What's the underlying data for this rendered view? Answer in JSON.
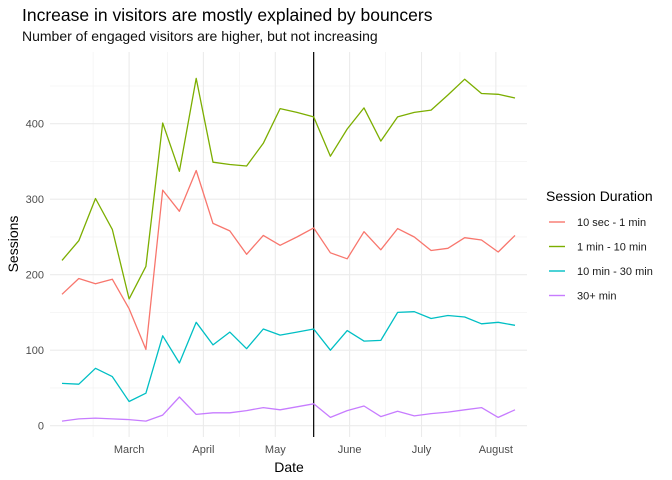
{
  "chart_data": {
    "type": "line",
    "title": "Increase in visitors are mostly explained by bouncers",
    "subtitle": "Number of engaged visitors are higher, but not increasing",
    "xlabel": "Date",
    "ylabel": "Sessions",
    "x_tick_labels": [
      "March",
      "April",
      "May",
      "June",
      "July",
      "August"
    ],
    "y_ticks": [
      0,
      100,
      200,
      300,
      400
    ],
    "ylim": [
      -15,
      495
    ],
    "grid": true,
    "legend": {
      "title": "Session Duration",
      "position": "right"
    },
    "reference_line": {
      "x": "2020-06-01"
    },
    "x": [
      "2020-02-17",
      "2020-02-24",
      "2020-03-02",
      "2020-03-09",
      "2020-03-16",
      "2020-03-23",
      "2020-03-30",
      "2020-04-06",
      "2020-04-13",
      "2020-04-20",
      "2020-04-27",
      "2020-05-04",
      "2020-05-11",
      "2020-05-18",
      "2020-05-25",
      "2020-06-01",
      "2020-06-08",
      "2020-06-15",
      "2020-06-22",
      "2020-06-29",
      "2020-07-06",
      "2020-07-13",
      "2020-07-20",
      "2020-07-27",
      "2020-08-03",
      "2020-08-10",
      "2020-08-17",
      "2020-08-24"
    ],
    "series": [
      {
        "name": "10 sec - 1 min",
        "color": "#F8766D",
        "values": [
          174,
          195,
          188,
          194,
          155,
          101,
          312,
          284,
          338,
          268,
          258,
          227,
          252,
          239,
          250,
          262,
          229,
          221,
          257,
          233,
          261,
          250,
          232,
          235,
          249,
          246,
          230,
          252
        ]
      },
      {
        "name": "1 min - 10 min",
        "color": "#7CAE00",
        "values": [
          219,
          245,
          301,
          260,
          168,
          211,
          401,
          337,
          460,
          349,
          346,
          344,
          374,
          420,
          415,
          409,
          357,
          393,
          421,
          377,
          409,
          415,
          418,
          438,
          459,
          440,
          439,
          434
        ]
      },
      {
        "name": "10 min - 30 min",
        "color": "#00BFC4",
        "values": [
          56,
          55,
          76,
          65,
          32,
          43,
          119,
          83,
          137,
          107,
          124,
          102,
          128,
          120,
          124,
          128,
          100,
          126,
          112,
          113,
          150,
          151,
          142,
          146,
          144,
          135,
          137,
          133
        ]
      },
      {
        "name": "30+ min",
        "color": "#C77CFF",
        "values": [
          6,
          9,
          10,
          9,
          8,
          6,
          14,
          38,
          15,
          17,
          17,
          20,
          24,
          21,
          25,
          29,
          11,
          20,
          26,
          12,
          19,
          13,
          16,
          18,
          21,
          24,
          11,
          21
        ]
      }
    ]
  }
}
